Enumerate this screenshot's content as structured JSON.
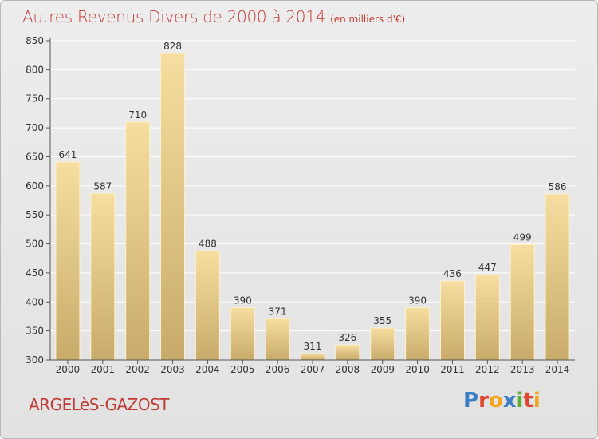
{
  "title": "Autres Revenus Divers de 2000 à 2014",
  "unit_note": "(en milliers d'€)",
  "location": "ARGELèS-GAZOST",
  "logo": {
    "text": "Proxiti",
    "letters": [
      {
        "char": "P",
        "color": "#3a7fc4"
      },
      {
        "char": "r",
        "color": "#e0452f"
      },
      {
        "char": "o",
        "color": "#f2a51c"
      },
      {
        "char": "x",
        "color": "#3a7fc4"
      },
      {
        "char": "i",
        "color": "#5fae35"
      },
      {
        "char": "t",
        "color": "#e0452f"
      },
      {
        "char": "i",
        "color": "#f2a51c"
      }
    ]
  },
  "colors": {
    "title": "#c03a34",
    "bar_top": "#f6dea0",
    "bar_bottom": "#c8ab6a",
    "grid": "#ffffff",
    "axis": "#555555"
  },
  "chart_data": {
    "type": "bar",
    "title": "Autres Revenus Divers de 2000 à 2014",
    "categories": [
      "2000",
      "2001",
      "2002",
      "2003",
      "2004",
      "2005",
      "2006",
      "2007",
      "2008",
      "2009",
      "2010",
      "2011",
      "2012",
      "2013",
      "2014"
    ],
    "values": [
      641,
      587,
      710,
      828,
      488,
      390,
      371,
      311,
      326,
      355,
      390,
      436,
      447,
      499,
      586
    ],
    "value_labels": [
      "641",
      "587",
      "710",
      "828",
      "488",
      "390",
      "371",
      "311",
      "326",
      "355",
      "390",
      "436",
      "447",
      "499",
      "586"
    ],
    "ylim": [
      300,
      850
    ],
    "yticks": [
      300,
      350,
      400,
      450,
      500,
      550,
      600,
      650,
      700,
      750,
      800,
      850
    ],
    "ytick_labels": [
      "300",
      "350",
      "400",
      "450",
      "500",
      "550",
      "600",
      "650",
      "700",
      "750",
      "800",
      "850"
    ],
    "grid": true,
    "legend": "none"
  }
}
